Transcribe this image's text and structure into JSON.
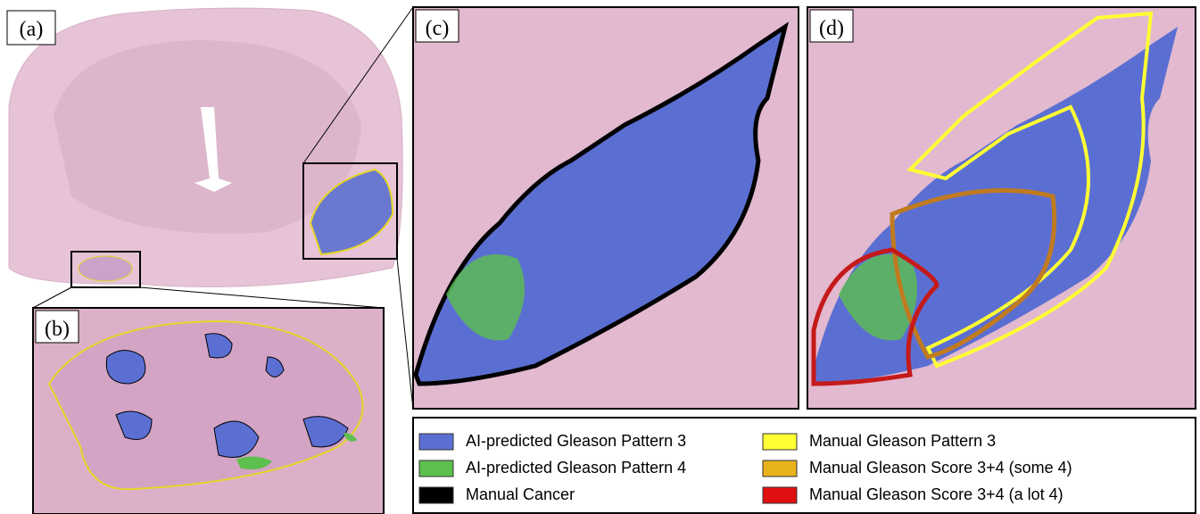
{
  "panels": [
    {
      "label": "(a)"
    },
    {
      "label": "(b)"
    },
    {
      "label": "(c)"
    },
    {
      "label": "(d)"
    }
  ],
  "legend": {
    "items": [
      {
        "label": "AI-predicted Gleason Pattern 3",
        "color": "#5b6fd2"
      },
      {
        "label": "AI-predicted Gleason Pattern 4",
        "color": "#5cbf4e"
      },
      {
        "label": "Manual Cancer",
        "color": "#000000"
      },
      {
        "label": "Manual Gleason Pattern 3",
        "color": "#ffff33"
      },
      {
        "label": "Manual Gleason Score 3+4 (some 4)",
        "color": "#e8b21c"
      },
      {
        "label": "Manual Gleason Score 3+4 (a lot 4)",
        "color": "#e01010"
      }
    ]
  }
}
